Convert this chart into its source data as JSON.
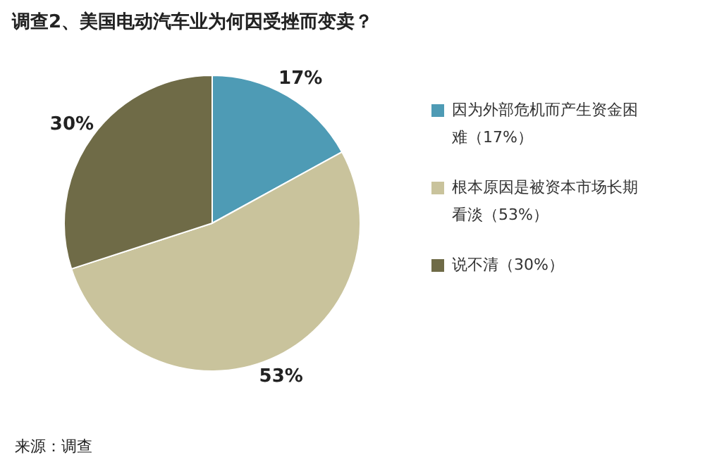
{
  "chart_data": {
    "type": "pie",
    "title": "调查2、美国电动汽车业为何因受挫而变卖？",
    "categories": [
      "因为外部危机而产生资金困难（17%）",
      "根本原因是被资本市场长期看淡（53%）",
      "说不清（30%）"
    ],
    "values": [
      17,
      53,
      30
    ],
    "colors": [
      "#4e9bb5",
      "#c9c39c",
      "#6f6b47"
    ],
    "value_labels": [
      "17%",
      "53%",
      "30%"
    ],
    "legend": "right",
    "annotations": [
      "来源：调查"
    ]
  }
}
